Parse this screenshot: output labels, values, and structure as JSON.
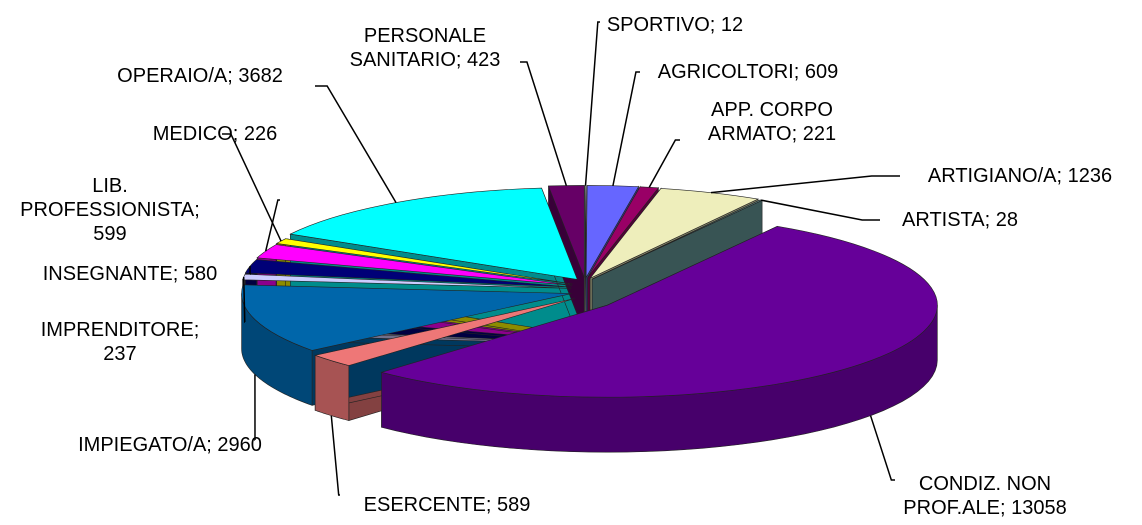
{
  "chart_data": {
    "type": "pie3d",
    "values": [
      12,
      609,
      221,
      1236,
      28,
      13058,
      589,
      2960,
      237,
      580,
      599,
      226,
      3682,
      423
    ],
    "value_labels": [
      "SPORTIVO; 12",
      "AGRICOLTORI; 609",
      "APP. CORPO\nARMATO; 221",
      "ARTIGIANO/A; 1236",
      "ARTISTA; 28",
      "CONDIZ. NON\nPROF.ALE; 13058",
      "ESERCENTE; 589",
      "IMPIEGATO/A; 2960",
      "IMPRENDITORE;\n237",
      "INSEGNANTE; 580",
      "LIB.\nPROFESSIONISTA;\n599",
      "MEDICO; 226",
      "OPERAIO/A; 3682",
      "PERSONALE\nSANITARIO; 423"
    ],
    "colors": [
      "#f4f4f4",
      "#6666ff",
      "#990066",
      "#eeeebb",
      "#669999",
      "#660099",
      "#ee7777",
      "#0066aa",
      "#ccccff",
      "#000077",
      "#ff00ff",
      "#ffff00",
      "#00ffff",
      "#660066"
    ]
  }
}
